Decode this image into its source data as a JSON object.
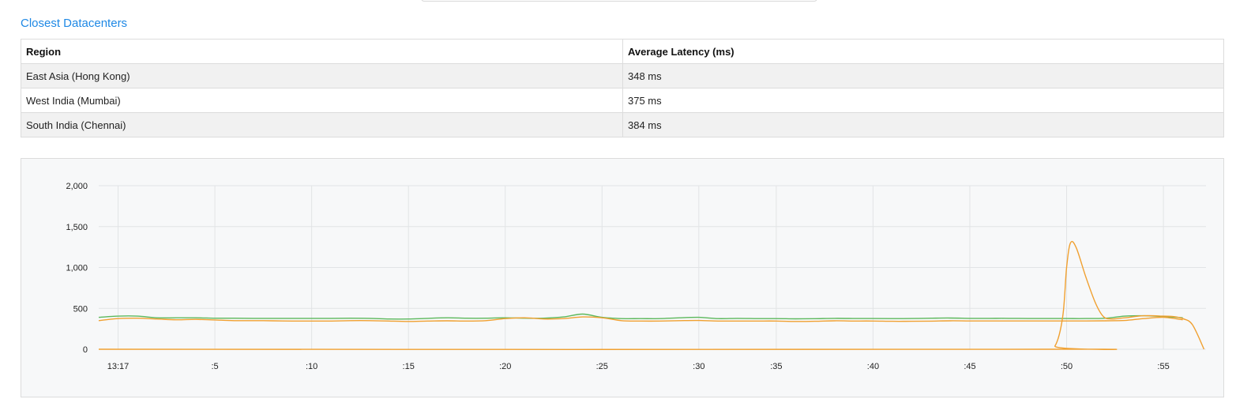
{
  "search_box": {},
  "section_title": "Closest Datacenters",
  "table": {
    "headers": [
      "Region",
      "Average Latency (ms)"
    ],
    "rows": [
      {
        "region": "East Asia (Hong Kong)",
        "latency": "348 ms"
      },
      {
        "region": "West India (Mumbai)",
        "latency": "375 ms"
      },
      {
        "region": "South India (Chennai)",
        "latency": "384 ms"
      }
    ]
  },
  "chart_data": {
    "type": "line",
    "title": "",
    "xlabel": "",
    "ylabel": "",
    "ylim": [
      0,
      2000
    ],
    "y_ticks": [
      0,
      500,
      1000,
      1500,
      2000
    ],
    "y_tick_labels": [
      "0",
      "500",
      "1,000",
      "1,500",
      "2,000"
    ],
    "x_ticks": [
      {
        "t": 0,
        "label": "13:17"
      },
      {
        "t": 5,
        "label": ":5"
      },
      {
        "t": 10,
        "label": ":10"
      },
      {
        "t": 15,
        "label": ":15"
      },
      {
        "t": 20,
        "label": ":20"
      },
      {
        "t": 25,
        "label": ":25"
      },
      {
        "t": 30,
        "label": ":30"
      },
      {
        "t": 34,
        "label": ":35"
      },
      {
        "t": 39,
        "label": ":40"
      },
      {
        "t": 44,
        "label": ":45"
      },
      {
        "t": 49,
        "label": ":50"
      },
      {
        "t": 54,
        "label": ":55"
      }
    ],
    "xlim": [
      -1,
      56.2
    ],
    "grid": true,
    "legend": "none",
    "series": [
      {
        "color": "#5cb85c",
        "x": [
          -1,
          0,
          1,
          2,
          3,
          4,
          5,
          6,
          7,
          8,
          9,
          10,
          11,
          12,
          13,
          14,
          15,
          16,
          17,
          18,
          19,
          20,
          21,
          22,
          23,
          24,
          25,
          26,
          27,
          28,
          29,
          30,
          31,
          32,
          33,
          34,
          35,
          36,
          37,
          38,
          39,
          40,
          41,
          42,
          43,
          44,
          45,
          46,
          47,
          48,
          49,
          50,
          51,
          52,
          53,
          54,
          55
        ],
        "y": [
          390,
          405,
          405,
          385,
          385,
          385,
          380,
          380,
          378,
          378,
          378,
          378,
          378,
          380,
          378,
          370,
          370,
          378,
          385,
          380,
          380,
          385,
          380,
          380,
          395,
          430,
          390,
          375,
          375,
          375,
          385,
          390,
          375,
          378,
          375,
          375,
          372,
          374,
          378,
          376,
          376,
          375,
          376,
          380,
          382,
          378,
          378,
          378,
          376,
          376,
          376,
          376,
          380,
          405,
          410,
          400,
          385
        ]
      },
      {
        "color": "#f0a030",
        "x": [
          -1,
          0,
          1,
          2,
          3,
          4,
          5,
          6,
          7,
          8,
          9,
          10,
          11,
          12,
          13,
          14,
          15,
          16,
          17,
          18,
          19,
          20,
          21,
          22,
          23,
          24,
          25,
          26,
          27,
          28,
          29,
          30,
          31,
          32,
          33,
          34,
          35,
          36,
          37,
          38,
          39,
          40,
          41,
          42,
          43,
          44,
          45,
          46,
          47,
          48,
          49,
          50,
          51,
          52,
          53,
          54,
          55
        ],
        "y": [
          350,
          375,
          380,
          370,
          360,
          365,
          358,
          350,
          350,
          348,
          345,
          345,
          345,
          350,
          350,
          345,
          340,
          345,
          348,
          345,
          350,
          375,
          385,
          370,
          375,
          395,
          385,
          350,
          345,
          345,
          350,
          352,
          345,
          345,
          345,
          345,
          340,
          342,
          348,
          345,
          345,
          342,
          342,
          344,
          348,
          346,
          346,
          346,
          346,
          346,
          346,
          346,
          348,
          352,
          375,
          390,
          360
        ]
      },
      {
        "color": "#f0a030",
        "x": [
          -1,
          47.8,
          48.4,
          48.8,
          49,
          49.2,
          49.5,
          50,
          50.5,
          50.9,
          51.3,
          52,
          53,
          54,
          54.5,
          55,
          55.5,
          56.1
        ],
        "y": [
          0,
          0,
          40,
          400,
          1000,
          1300,
          1240,
          880,
          560,
          400,
          370,
          385,
          410,
          405,
          400,
          375,
          300,
          0
        ]
      }
    ]
  }
}
